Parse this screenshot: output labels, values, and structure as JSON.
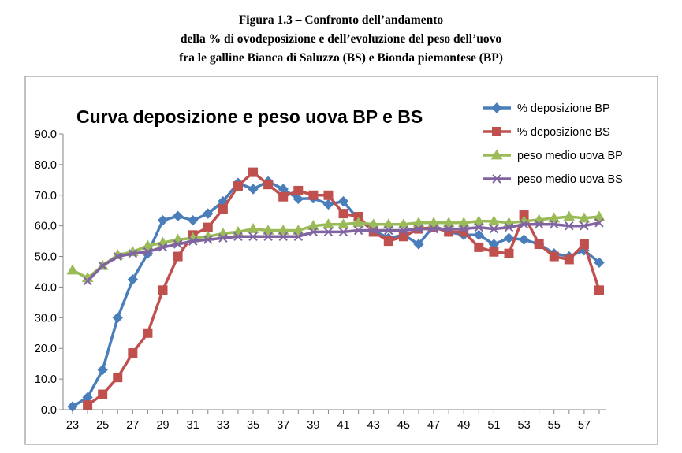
{
  "figure_caption": {
    "line1": "Figura 1.3 – Confronto dell’andamento",
    "line2": "della % di ovodeposizione e dell’evoluzione del peso dell’uovo",
    "line3": "fra le galline Bianca di Saluzzo (BS) e Bionda piemontese (BP)"
  },
  "chart_data": {
    "type": "line",
    "title": "Curva deposizione e peso uova BP e BS",
    "xlabel": "",
    "ylabel": "",
    "x": [
      23,
      24,
      25,
      26,
      27,
      28,
      29,
      30,
      31,
      32,
      33,
      34,
      35,
      36,
      37,
      38,
      39,
      40,
      41,
      42,
      43,
      44,
      45,
      46,
      47,
      48,
      49,
      50,
      51,
      52,
      53,
      54,
      55,
      56,
      57,
      58
    ],
    "x_tick_labels": [
      "23",
      "25",
      "27",
      "29",
      "31",
      "33",
      "35",
      "37",
      "39",
      "41",
      "43",
      "45",
      "47",
      "49",
      "51",
      "53",
      "55",
      "57"
    ],
    "y_tick_labels": [
      "0.0",
      "10.0",
      "20.0",
      "30.0",
      "40.0",
      "50.0",
      "60.0",
      "70.0",
      "80.0",
      "90.0"
    ],
    "ylim": [
      0,
      90
    ],
    "grid": false,
    "legend_position": "top-right",
    "series": [
      {
        "name": "% deposizione BP",
        "color": "#4a7ebb",
        "marker": "diamond",
        "values": [
          1.0,
          4.0,
          13.0,
          30.0,
          42.5,
          51.0,
          61.8,
          63.2,
          61.8,
          64.0,
          68.0,
          74.0,
          72.0,
          74.5,
          72.0,
          68.8,
          69.0,
          67.0,
          68.0,
          62.0,
          58.5,
          56.0,
          57.0,
          54.0,
          60.0,
          58.0,
          57.0,
          57.0,
          54.0,
          56.0,
          55.5,
          54.0,
          51.0,
          50.0,
          52.0,
          48.0
        ]
      },
      {
        "name": "% deposizione BS",
        "color": "#c0504d",
        "marker": "square",
        "values": [
          null,
          1.5,
          5.0,
          10.5,
          18.5,
          25.0,
          39.0,
          50.0,
          57.0,
          59.5,
          65.5,
          73.0,
          77.5,
          73.5,
          69.5,
          71.5,
          70.0,
          70.0,
          64.0,
          63.0,
          58.0,
          55.0,
          56.5,
          59.0,
          59.5,
          58.0,
          58.0,
          53.0,
          51.5,
          51.0,
          63.5,
          54.0,
          50.0,
          49.0,
          54.0,
          39.0
        ]
      },
      {
        "name": "peso medio uova BP",
        "color": "#9bbb59",
        "marker": "triangle",
        "values": [
          45.5,
          43.0,
          47.0,
          50.5,
          51.5,
          53.5,
          54.5,
          55.5,
          56.0,
          56.5,
          57.5,
          58.0,
          59.0,
          58.5,
          58.5,
          58.5,
          60.0,
          60.5,
          60.5,
          61.0,
          60.5,
          60.5,
          60.5,
          61.0,
          61.0,
          61.0,
          61.0,
          61.5,
          61.5,
          61.0,
          61.5,
          62.0,
          62.5,
          63.0,
          62.5,
          63.0
        ]
      },
      {
        "name": "peso medio uova BS",
        "color": "#8064a2",
        "marker": "x",
        "values": [
          null,
          42.0,
          47.0,
          50.0,
          51.0,
          51.5,
          53.0,
          54.0,
          55.0,
          55.5,
          56.0,
          56.5,
          56.5,
          56.5,
          56.5,
          56.5,
          58.0,
          58.0,
          58.0,
          58.5,
          58.5,
          58.5,
          58.5,
          59.0,
          59.0,
          59.0,
          59.0,
          59.5,
          59.0,
          59.5,
          60.5,
          60.5,
          60.5,
          60.0,
          60.0,
          61.0
        ]
      }
    ]
  }
}
